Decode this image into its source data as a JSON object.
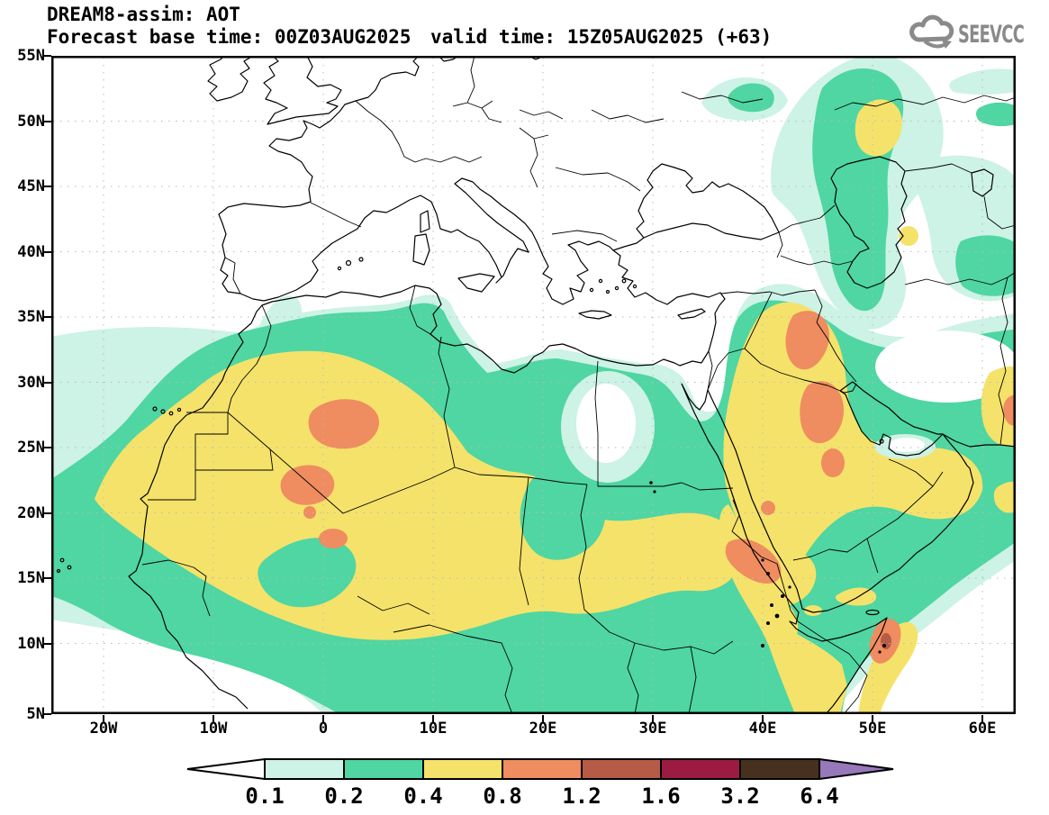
{
  "header": {
    "title": "DREAM8-assim: AOT",
    "base_time_label": "Forecast base time: 00Z03AUG2025",
    "valid_time_label": "valid time: 15Z05AUG2025 (+63)"
  },
  "logo": {
    "text": "SEEVCCC"
  },
  "axes": {
    "lat": [
      "55N",
      "50N",
      "45N",
      "40N",
      "35N",
      "30N",
      "25N",
      "20N",
      "15N",
      "10N",
      "5N"
    ],
    "lon": [
      "20W",
      "10W",
      "0",
      "10E",
      "20E",
      "30E",
      "40E",
      "50E",
      "60E"
    ]
  },
  "colorbar": {
    "labels": [
      "0.1",
      "0.2",
      "0.4",
      "0.8",
      "1.2",
      "1.6",
      "3.2",
      "6.4"
    ],
    "colors": [
      "#ffffff",
      "#cdf2e6",
      "#4fd6a2",
      "#f5e26a",
      "#ef8c60",
      "#b65b46",
      "#9b1b42",
      "#46311f",
      "#9678bb"
    ]
  },
  "chart_data": {
    "type": "heatmap",
    "subtype": "filled-contour-forecast-map",
    "title": "DREAM8-assim: AOT",
    "variable": "AOT (aerosol optical thickness)",
    "forecast_base_time": "00Z03AUG2025",
    "valid_time": "15Z05AUG2025",
    "lead_hours": 63,
    "x_axis": {
      "type": "longitude",
      "ticks": [
        "20W",
        "10W",
        "0",
        "10E",
        "20E",
        "30E",
        "40E",
        "50E",
        "60E"
      ]
    },
    "y_axis": {
      "type": "latitude",
      "ticks": [
        "55N",
        "50N",
        "45N",
        "40N",
        "35N",
        "30N",
        "25N",
        "20N",
        "15N",
        "10N",
        "5N"
      ]
    },
    "map_domain": {
      "lon_min": "25W",
      "lon_max": "63E",
      "lat_min": "5N",
      "lat_max": "55N"
    },
    "grid": "dotted graticule every 5 deg lat / 10 deg lon",
    "contour_levels": [
      0.1,
      0.2,
      0.4,
      0.8,
      1.2,
      1.6,
      3.2,
      6.4
    ],
    "level_colors": {
      "below_0.1": "#ffffff",
      "0.1-0.2": "#cdf2e6",
      "0.2-0.4": "#4fd6a2",
      "0.4-0.8": "#f5e26a",
      "0.8-1.2": "#ef8c60",
      "1.2-1.6": "#b65b46",
      "1.6-3.2": "#9b1b42",
      "3.2-6.4": "#46311f",
      "above_6.4": "#9678bb"
    },
    "readings": [
      {
        "area": "Europe and NW Atlantic",
        "aot": "<0.1"
      },
      {
        "area": "E Atlantic halo off West Africa (25W-15W, 10N-33N)",
        "aot": "0.1-0.4"
      },
      {
        "area": "Saharan dust belt 12N-33N from Mauritania to Libya",
        "aot": "0.4-0.8"
      },
      {
        "area": "hotspot central Algeria ~27N 1E",
        "aot": "0.8-1.2"
      },
      {
        "area": "hotspot N Mali / S Algeria ~22-24N 3W-1E",
        "aot": "0.8-1.2"
      },
      {
        "area": "Sahel belt Chad-Sudan ~13-20N 10E-35E",
        "aot": "0.4-0.8"
      },
      {
        "area": "clean hole over central Egypt ~25N 28E",
        "aot": "<0.1"
      },
      {
        "area": "S Spain / Alboran patch ~37N 6W",
        "aot": "0.1-0.2"
      },
      {
        "area": "hotspot N-C Iraq ~34N 43E",
        "aot": "0.8-1.2"
      },
      {
        "area": "hotspot central Saudi Arabia ~26-28N 44E",
        "aot": "0.8-1.2"
      },
      {
        "area": "S Red Sea coast Eritrea/Yemen ~16N 40E",
        "aot": "0.8-1.2"
      },
      {
        "area": "NE Somalia plume ~8-12N 49-51E",
        "aot": "1.2-1.6 core"
      },
      {
        "area": "Caspian / W Kazakhstan plume ~44-54N 45-55E",
        "aot": "0.2-0.8"
      },
      {
        "area": "Arabian Sea / Gulf of Oman halo",
        "aot": "0.1-0.4"
      },
      {
        "area": "E Iran interior",
        "aot": "<0.1"
      }
    ],
    "legend_position": "bottom center horizontal colorbar with under-range and over-range arrows"
  }
}
